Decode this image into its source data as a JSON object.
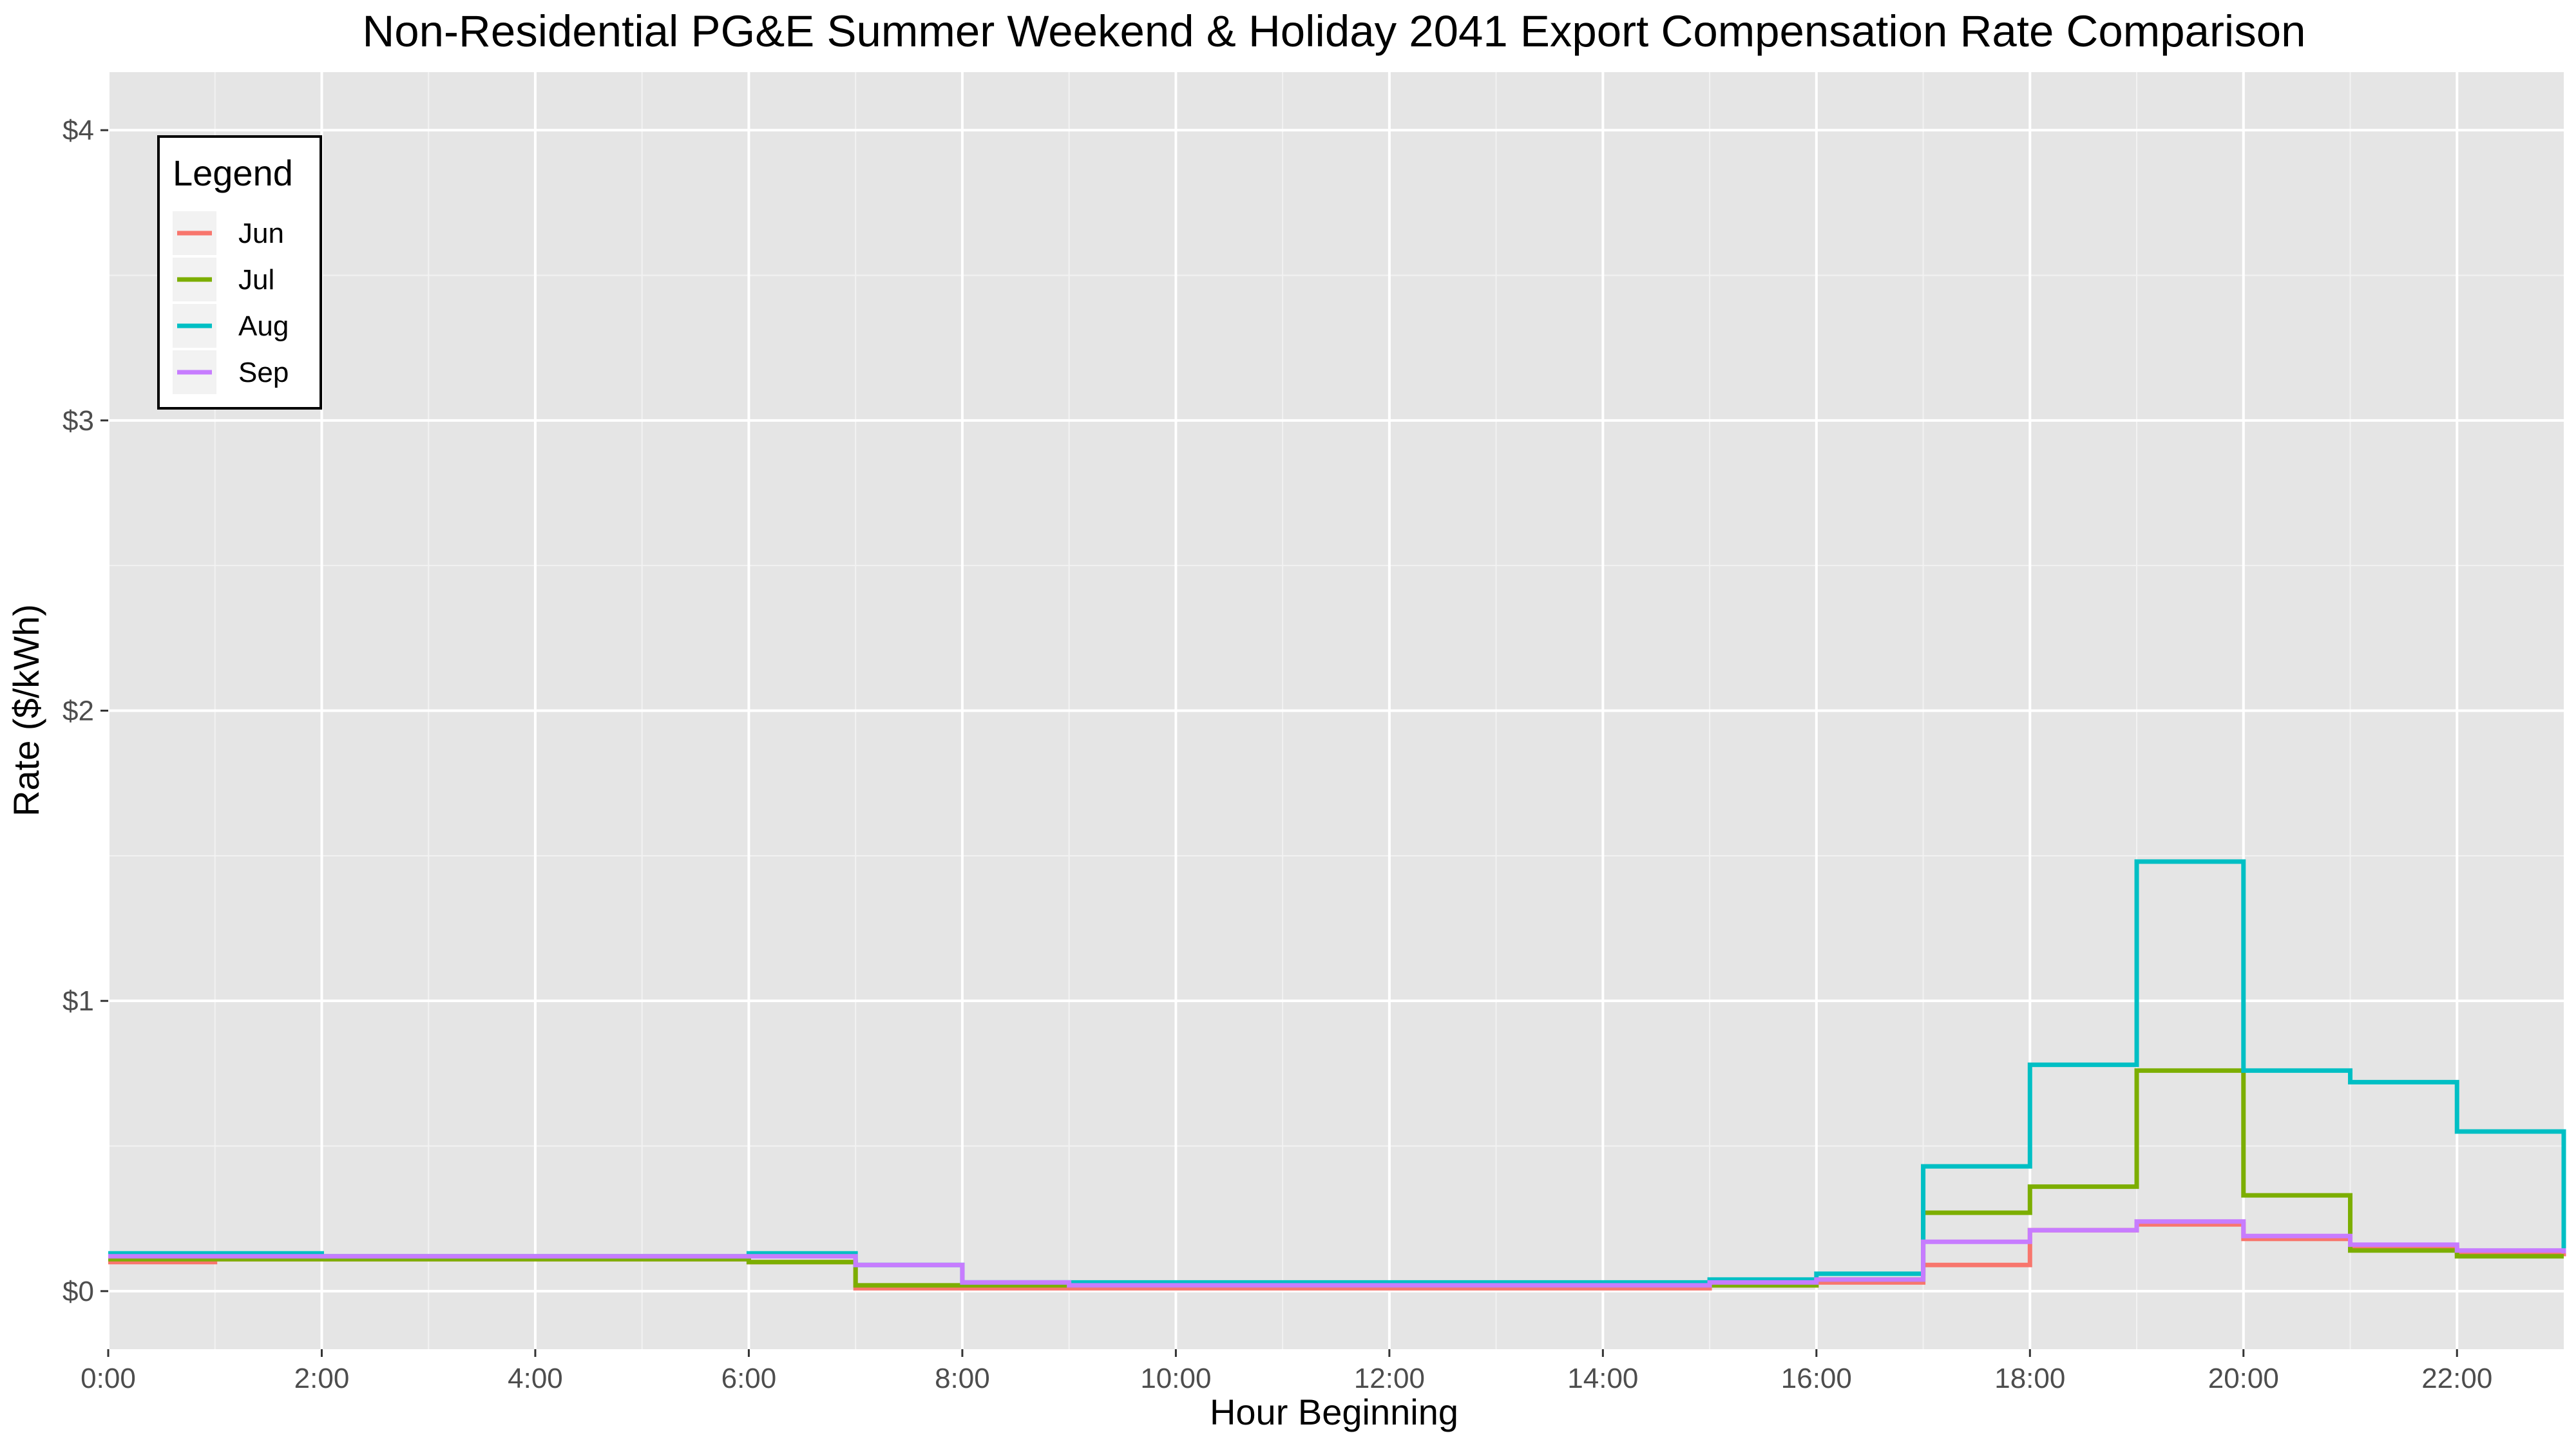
{
  "chart_data": {
    "type": "line",
    "step": true,
    "title": "Non-Residential PG&E Summer Weekend & Holiday 2041 Export Compensation Rate Comparison",
    "xlabel": "Hour Beginning",
    "ylabel": "Rate ($/kWh)",
    "x": [
      0,
      1,
      2,
      3,
      4,
      5,
      6,
      7,
      8,
      9,
      10,
      11,
      12,
      13,
      14,
      15,
      16,
      17,
      18,
      19,
      20,
      21,
      22,
      23
    ],
    "xlim": [
      0,
      23
    ],
    "ylim": [
      -0.2,
      4.2
    ],
    "x_ticks": [
      0,
      2,
      4,
      6,
      8,
      10,
      12,
      14,
      16,
      18,
      20,
      22
    ],
    "x_tick_labels": [
      "0:00",
      "2:00",
      "4:00",
      "6:00",
      "8:00",
      "10:00",
      "12:00",
      "14:00",
      "16:00",
      "18:00",
      "20:00",
      "22:00"
    ],
    "y_ticks": [
      0,
      1,
      2,
      3,
      4
    ],
    "y_tick_labels": [
      "$0",
      "$1",
      "$2",
      "$3",
      "$4"
    ],
    "grid": true,
    "legend_title": "Legend",
    "legend_position": "top-left",
    "series": [
      {
        "name": "Jun",
        "color": "#F8766D",
        "values": [
          0.1,
          0.11,
          0.11,
          0.11,
          0.11,
          0.11,
          0.1,
          0.01,
          0.01,
          0.01,
          0.01,
          0.01,
          0.01,
          0.01,
          0.01,
          0.02,
          0.03,
          0.09,
          0.21,
          0.23,
          0.18,
          0.15,
          0.13,
          0.12
        ]
      },
      {
        "name": "Jul",
        "color": "#7CAE00",
        "values": [
          0.11,
          0.11,
          0.11,
          0.11,
          0.11,
          0.11,
          0.1,
          0.02,
          0.02,
          0.02,
          0.02,
          0.02,
          0.02,
          0.02,
          0.02,
          0.02,
          0.04,
          0.27,
          0.36,
          0.76,
          0.33,
          0.14,
          0.12,
          0.12
        ]
      },
      {
        "name": "Aug",
        "color": "#00BFC4",
        "values": [
          0.13,
          0.13,
          0.12,
          0.12,
          0.12,
          0.12,
          0.13,
          0.09,
          0.03,
          0.03,
          0.03,
          0.03,
          0.03,
          0.03,
          0.03,
          0.04,
          0.06,
          0.43,
          0.78,
          1.48,
          0.76,
          0.72,
          0.55,
          0.14
        ]
      },
      {
        "name": "Sep",
        "color": "#C77CFF",
        "values": [
          0.12,
          0.12,
          0.12,
          0.12,
          0.12,
          0.12,
          0.12,
          0.09,
          0.03,
          0.02,
          0.02,
          0.02,
          0.02,
          0.02,
          0.02,
          0.03,
          0.04,
          0.17,
          0.21,
          0.24,
          0.19,
          0.16,
          0.14,
          0.13
        ]
      }
    ]
  }
}
